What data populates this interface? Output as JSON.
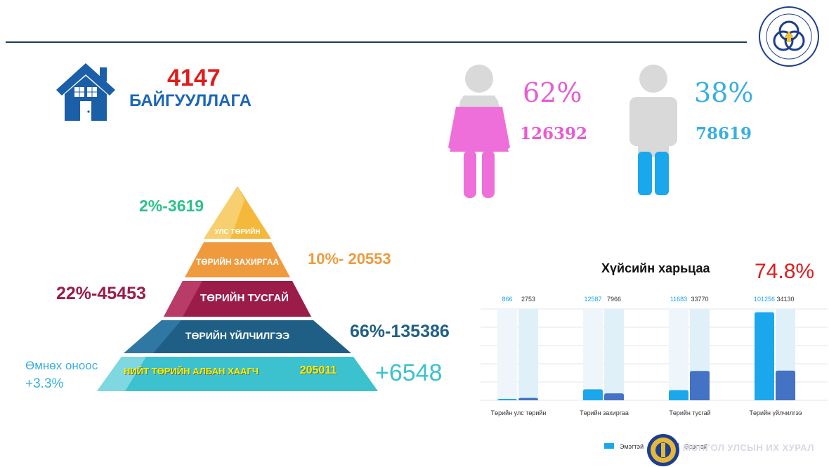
{
  "header": {
    "seal_text": "CIVIL SERVICE COUNCIL OF MONGOLIA"
  },
  "organizations": {
    "count": "4147",
    "label": "БАЙГУУЛЛАГА"
  },
  "gender": {
    "female": {
      "percent": "62%",
      "count": "126392",
      "color": "#e85bd2"
    },
    "male": {
      "percent": "38%",
      "count": "78619",
      "color": "#3aaee0"
    }
  },
  "pyramid": {
    "levels": [
      {
        "label": "УЛС ТӨРИЙН",
        "stat": "2%-3619",
        "color": "#f4b93a"
      },
      {
        "label": "ТӨРИЙН ЗАХИРГАА",
        "stat": "10%-  20553",
        "color": "#ef9a3c"
      },
      {
        "label": "ТӨРИЙН ТУСГАЙ",
        "stat": "22%-45453",
        "color": "#9b1c48"
      },
      {
        "label": "ТӨРИЙН ҮЙЛЧИЛГЭЭ",
        "stat": "66%-135386",
        "color": "#1f5f86"
      }
    ],
    "base": {
      "label": "НИЙТ ТӨРИЙН АЛБАН ХААГЧ",
      "total": "205011",
      "color": "#3cc2cf"
    },
    "change_label": "Өмнөх оноос",
    "change_percent": "+3.3%",
    "change_count": "+6548"
  },
  "chart_data": {
    "type": "bar",
    "title": "Хүйсийн харьцаа",
    "highlight": "74.8%",
    "categories": [
      "Төрийн улс төрийн",
      "Төрийн захиргаа",
      "Төрийн тусгай",
      "Төрийн үйлчилгээ"
    ],
    "series": [
      {
        "name": "Эмэгтэй",
        "values": [
          866,
          12587,
          11683,
          101256
        ],
        "color": "#1aa7ec"
      },
      {
        "name": "Эрэгтэй",
        "values": [
          2753,
          7966,
          33770,
          34130
        ],
        "color": "#4472c4"
      }
    ],
    "value_labels": [
      [
        "866",
        "2753"
      ],
      [
        "12587",
        "7966"
      ],
      [
        "11683",
        "33770"
      ],
      [
        "101256",
        "34130"
      ]
    ],
    "ylim": [
      0,
      105000
    ],
    "grid": true,
    "legend": "bottom"
  },
  "footer": {
    "watermark": "МОНГОЛ УЛСЫН ИХ ХУРАЛ"
  }
}
